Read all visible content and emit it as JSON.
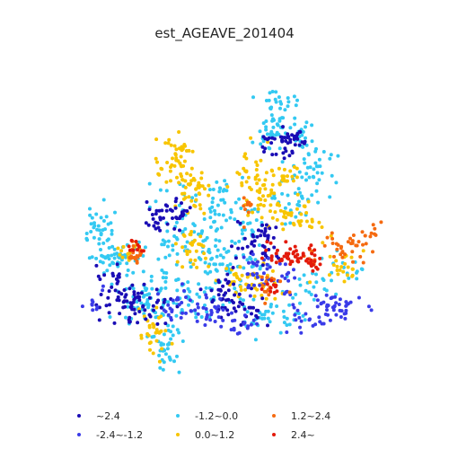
{
  "chart_data": {
    "type": "scatter",
    "title": "est_AGEAVE_201404",
    "xlabel": "",
    "ylabel": "",
    "grid": false,
    "legend_position": "bottom",
    "classes": [
      {
        "label": "~2.4",
        "color": "#1a0cb5"
      },
      {
        "label": "-2.4~-1.2",
        "color": "#3a3be8"
      },
      {
        "label": "-1.2~0.0",
        "color": "#33c9f2"
      },
      {
        "label": "0.0~1.2",
        "color": "#f8c500"
      },
      {
        "label": "1.2~2.4",
        "color": "#f56a10"
      },
      {
        "label": "2.4~",
        "color": "#e31a0b"
      }
    ]
  }
}
